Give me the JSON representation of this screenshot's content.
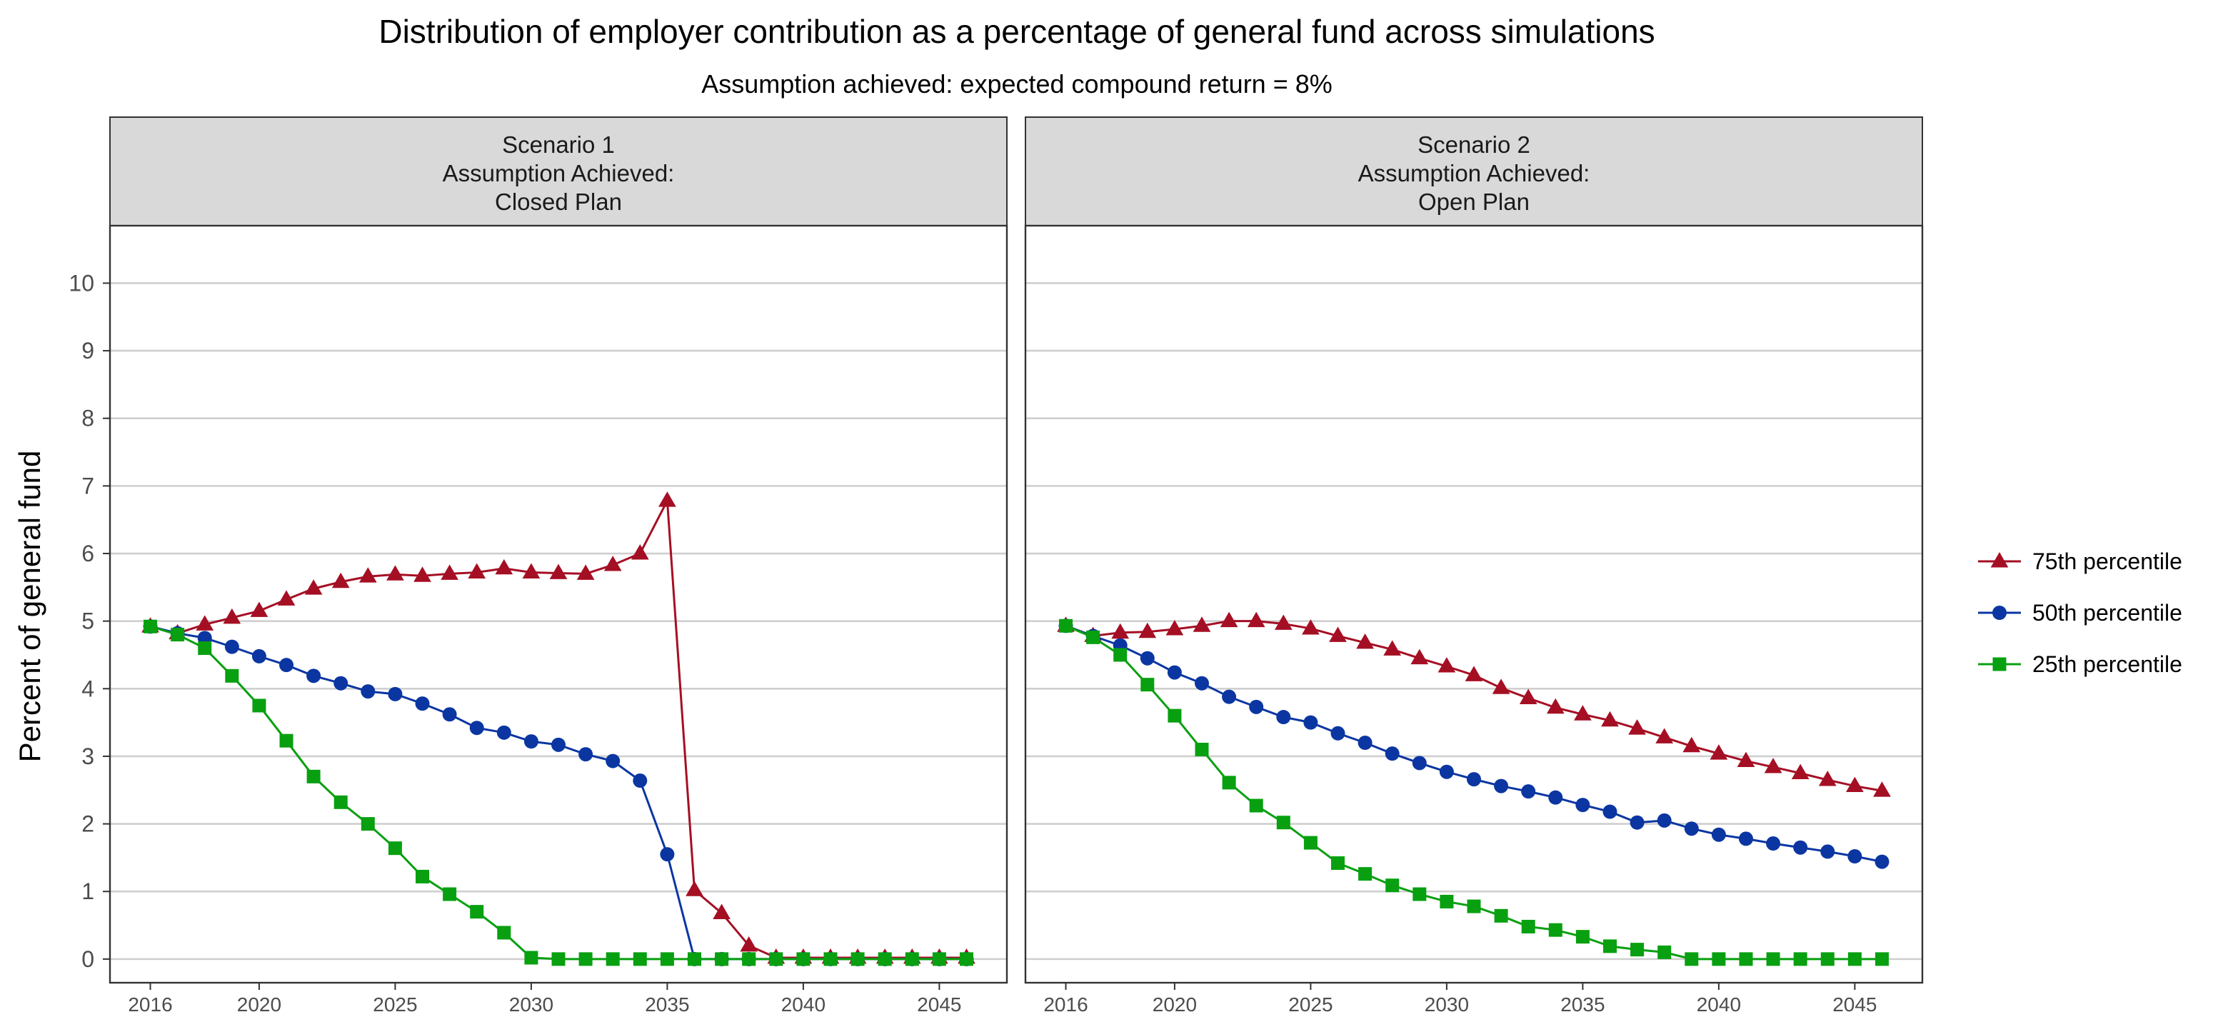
{
  "chart_data": {
    "type": "line",
    "title": "Distribution of employer contribution as a percentage of general fund across simulations",
    "subtitle": "Assumption achieved: expected compound return = 8%",
    "ylabel": "Percent of general fund",
    "xlabel": "",
    "xlim": [
      2016,
      2046
    ],
    "ylim": [
      0,
      10
    ],
    "x_ticks": [
      2016,
      2020,
      2025,
      2030,
      2035,
      2040,
      2045
    ],
    "y_ticks": [
      0,
      1,
      2,
      3,
      4,
      5,
      6,
      7,
      8,
      9,
      10
    ],
    "grid": "horizontal",
    "legend_position": "right",
    "x": [
      2016,
      2017,
      2018,
      2019,
      2020,
      2021,
      2022,
      2023,
      2024,
      2025,
      2026,
      2027,
      2028,
      2029,
      2030,
      2031,
      2032,
      2033,
      2034,
      2035,
      2036,
      2037,
      2038,
      2039,
      2040,
      2041,
      2042,
      2043,
      2044,
      2045,
      2046
    ],
    "series_styles": [
      {
        "color": "#A50F24",
        "marker": "triangle"
      },
      {
        "color": "#0B36A2",
        "marker": "circle"
      },
      {
        "color": "#08A010",
        "marker": "square"
      }
    ],
    "legend": [
      {
        "label": "75th percentile",
        "color": "#A50F24",
        "marker": "triangle"
      },
      {
        "label": "50th percentile",
        "color": "#0B36A2",
        "marker": "circle"
      },
      {
        "label": "25th percentile",
        "color": "#08A010",
        "marker": "square"
      }
    ],
    "panels": [
      {
        "strip": [
          "Scenario 1",
          "Assumption Achieved:",
          "Closed Plan"
        ],
        "series": [
          {
            "name": "75th percentile",
            "values": [
              4.92,
              4.82,
              4.95,
              5.05,
              5.15,
              5.32,
              5.48,
              5.58,
              5.66,
              5.69,
              5.67,
              5.7,
              5.72,
              5.78,
              5.72,
              5.71,
              5.7,
              5.83,
              6.0,
              6.78,
              1.02,
              0.68,
              0.2,
              0.02,
              0.02,
              0.02,
              0.02,
              0.02,
              0.02,
              0.02,
              0.02
            ]
          },
          {
            "name": "50th percentile",
            "values": [
              4.92,
              4.82,
              4.75,
              4.62,
              4.48,
              4.35,
              4.19,
              4.08,
              3.96,
              3.92,
              3.78,
              3.62,
              3.42,
              3.35,
              3.22,
              3.17,
              3.03,
              2.93,
              2.64,
              1.55,
              0.0,
              0.0,
              0.0,
              0.0,
              0.0,
              0.0,
              0.0,
              0.0,
              0.0,
              0.0,
              0.0
            ]
          },
          {
            "name": "25th percentile",
            "values": [
              4.92,
              4.8,
              4.6,
              4.19,
              3.75,
              3.23,
              2.7,
              2.32,
              2.0,
              1.64,
              1.22,
              0.96,
              0.7,
              0.39,
              0.02,
              0.0,
              0.0,
              0.0,
              0.0,
              0.0,
              0.0,
              0.0,
              0.0,
              0.0,
              0.0,
              0.0,
              0.0,
              0.0,
              0.0,
              0.0,
              0.0
            ]
          }
        ]
      },
      {
        "strip": [
          "Scenario 2",
          "Assumption Achieved:",
          "Open Plan"
        ],
        "series": [
          {
            "name": "75th percentile",
            "values": [
              4.93,
              4.78,
              4.83,
              4.84,
              4.88,
              4.93,
              5.0,
              5.0,
              4.96,
              4.89,
              4.78,
              4.68,
              4.58,
              4.45,
              4.33,
              4.2,
              4.01,
              3.86,
              3.72,
              3.62,
              3.53,
              3.41,
              3.28,
              3.15,
              3.04,
              2.93,
              2.84,
              2.75,
              2.65,
              2.56,
              2.49
            ]
          },
          {
            "name": "50th percentile",
            "values": [
              4.93,
              4.78,
              4.64,
              4.45,
              4.24,
              4.08,
              3.88,
              3.73,
              3.58,
              3.5,
              3.34,
              3.2,
              3.04,
              2.9,
              2.77,
              2.66,
              2.56,
              2.48,
              2.39,
              2.28,
              2.18,
              2.02,
              2.05,
              1.93,
              1.84,
              1.78,
              1.71,
              1.65,
              1.59,
              1.52,
              1.44
            ]
          },
          {
            "name": "25th percentile",
            "values": [
              4.93,
              4.76,
              4.5,
              4.06,
              3.6,
              3.1,
              2.61,
              2.27,
              2.02,
              1.72,
              1.42,
              1.26,
              1.09,
              0.96,
              0.85,
              0.78,
              0.64,
              0.48,
              0.43,
              0.33,
              0.19,
              0.14,
              0.1,
              0.0,
              0.0,
              0.0,
              0.0,
              0.0,
              0.0,
              0.0,
              0.0
            ]
          }
        ]
      }
    ]
  }
}
